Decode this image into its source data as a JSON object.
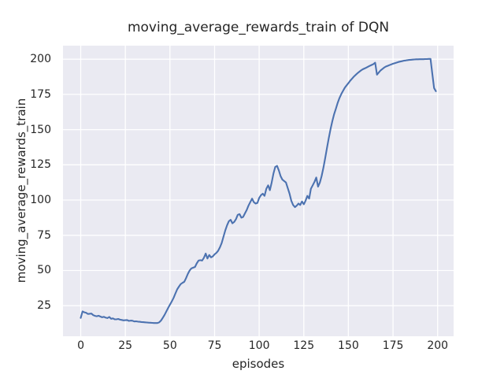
{
  "figure": {
    "background": "#ffffff",
    "plot_background": "#eaeaf2",
    "grid_color": "#ffffff",
    "text_color": "#262626",
    "line_color": "#4c72b0"
  },
  "chart_data": {
    "type": "line",
    "title": "moving_average_rewards_train of DQN",
    "xlabel": "episodes",
    "ylabel": "moving_average_rewards_train",
    "x_ticks": [
      0,
      25,
      50,
      75,
      100,
      125,
      150,
      175,
      200
    ],
    "y_ticks": [
      25,
      50,
      75,
      100,
      125,
      150,
      175,
      200
    ],
    "xlim": [
      -9.95,
      208.95
    ],
    "ylim": [
      3.3,
      209.6
    ],
    "grid": true,
    "legend": "none",
    "series": [
      {
        "name": "moving_average_rewards_train",
        "color": "#4c72b0",
        "points": [
          [
            0,
            16.3
          ],
          [
            1,
            20.9
          ],
          [
            2,
            20.3
          ],
          [
            3,
            20.0
          ],
          [
            4,
            19.1
          ],
          [
            5,
            19.3
          ],
          [
            6,
            19.4
          ],
          [
            7,
            18.3
          ],
          [
            8,
            17.8
          ],
          [
            9,
            17.5
          ],
          [
            10,
            17.9
          ],
          [
            11,
            17.3
          ],
          [
            12,
            16.8
          ],
          [
            13,
            17.1
          ],
          [
            14,
            16.5
          ],
          [
            15,
            16.2
          ],
          [
            16,
            17.0
          ],
          [
            17,
            15.7
          ],
          [
            18,
            16.0
          ],
          [
            19,
            15.4
          ],
          [
            20,
            15.3
          ],
          [
            21,
            15.6
          ],
          [
            22,
            15.1
          ],
          [
            23,
            14.9
          ],
          [
            24,
            14.6
          ],
          [
            25,
            14.7
          ],
          [
            26,
            14.8
          ],
          [
            27,
            14.2
          ],
          [
            28,
            14.4
          ],
          [
            29,
            14.3
          ],
          [
            30,
            13.8
          ],
          [
            31,
            13.9
          ],
          [
            32,
            13.7
          ],
          [
            33,
            13.6
          ],
          [
            34,
            13.4
          ],
          [
            35,
            13.3
          ],
          [
            36,
            13.2
          ],
          [
            37,
            13.1
          ],
          [
            38,
            13.0
          ],
          [
            39,
            12.9
          ],
          [
            40,
            12.8
          ],
          [
            41,
            12.7
          ],
          [
            42,
            12.7
          ],
          [
            43,
            12.7
          ],
          [
            44,
            13.2
          ],
          [
            45,
            14.5
          ],
          [
            46,
            16.5
          ],
          [
            47,
            18.5
          ],
          [
            48,
            21.0
          ],
          [
            49,
            23.5
          ],
          [
            50,
            25.7
          ],
          [
            51,
            28.0
          ],
          [
            52,
            30.5
          ],
          [
            53,
            33.5
          ],
          [
            54,
            36.5
          ],
          [
            55,
            38.5
          ],
          [
            56,
            40.3
          ],
          [
            57,
            41.2
          ],
          [
            58,
            42.0
          ],
          [
            59,
            44.5
          ],
          [
            60,
            47.5
          ],
          [
            61,
            50.0
          ],
          [
            62,
            51.5
          ],
          [
            63,
            52.0
          ],
          [
            64,
            52.5
          ],
          [
            65,
            55.0
          ],
          [
            66,
            57.0
          ],
          [
            67,
            57.3
          ],
          [
            68,
            57.0
          ],
          [
            69,
            59.0
          ],
          [
            70,
            62.0
          ],
          [
            71,
            58.5
          ],
          [
            72,
            61.0
          ],
          [
            73,
            59.3
          ],
          [
            74,
            60.0
          ],
          [
            75,
            61.5
          ],
          [
            76,
            62.5
          ],
          [
            77,
            64.0
          ],
          [
            78,
            66.5
          ],
          [
            79,
            69.5
          ],
          [
            80,
            74.0
          ],
          [
            81,
            78.5
          ],
          [
            82,
            82.0
          ],
          [
            83,
            85.0
          ],
          [
            84,
            86.0
          ],
          [
            85,
            83.5
          ],
          [
            86,
            84.5
          ],
          [
            87,
            86.5
          ],
          [
            88,
            89.5
          ],
          [
            89,
            90.0
          ],
          [
            90,
            87.5
          ],
          [
            91,
            88.0
          ],
          [
            92,
            90.5
          ],
          [
            93,
            93.0
          ],
          [
            94,
            96.0
          ],
          [
            95,
            98.5
          ],
          [
            96,
            101.0
          ],
          [
            97,
            98.5
          ],
          [
            98,
            97.5
          ],
          [
            99,
            98.0
          ],
          [
            100,
            101.5
          ],
          [
            101,
            103.5
          ],
          [
            102,
            104.5
          ],
          [
            103,
            103.0
          ],
          [
            104,
            108.0
          ],
          [
            105,
            110.5
          ],
          [
            106,
            107.0
          ],
          [
            107,
            112.5
          ],
          [
            108,
            119.0
          ],
          [
            109,
            123.5
          ],
          [
            110,
            124.3
          ],
          [
            111,
            121.0
          ],
          [
            112,
            117.0
          ],
          [
            113,
            114.5
          ],
          [
            114,
            113.5
          ],
          [
            115,
            112.5
          ],
          [
            116,
            108.5
          ],
          [
            117,
            104.5
          ],
          [
            118,
            99.5
          ],
          [
            119,
            96.5
          ],
          [
            120,
            95.0
          ],
          [
            121,
            96.0
          ],
          [
            122,
            97.5
          ],
          [
            123,
            96.5
          ],
          [
            124,
            99.0
          ],
          [
            125,
            97.0
          ],
          [
            126,
            99.5
          ],
          [
            127,
            103.0
          ],
          [
            128,
            101.0
          ],
          [
            129,
            108.0
          ],
          [
            130,
            110.5
          ],
          [
            131,
            113.0
          ],
          [
            132,
            116.0
          ],
          [
            133,
            109.5
          ],
          [
            134,
            112.5
          ],
          [
            135,
            117.0
          ],
          [
            136,
            123.0
          ],
          [
            137,
            130.0
          ],
          [
            138,
            137.0
          ],
          [
            139,
            144.0
          ],
          [
            140,
            150.5
          ],
          [
            141,
            156.0
          ],
          [
            142,
            161.0
          ],
          [
            143,
            165.0
          ],
          [
            144,
            169.0
          ],
          [
            145,
            172.5
          ],
          [
            146,
            175.3
          ],
          [
            147,
            177.5
          ],
          [
            148,
            179.8
          ],
          [
            149,
            181.5
          ],
          [
            150,
            183.0
          ],
          [
            151,
            184.7
          ],
          [
            152,
            186.2
          ],
          [
            153,
            187.6
          ],
          [
            154,
            188.8
          ],
          [
            155,
            190.0
          ],
          [
            156,
            191.0
          ],
          [
            157,
            192.0
          ],
          [
            158,
            192.8
          ],
          [
            159,
            193.4
          ],
          [
            160,
            194.0
          ],
          [
            161,
            194.7
          ],
          [
            162,
            195.3
          ],
          [
            163,
            195.9
          ],
          [
            164,
            196.5
          ],
          [
            165,
            197.5
          ],
          [
            166,
            189.0
          ],
          [
            167,
            190.5
          ],
          [
            168,
            192.0
          ],
          [
            169,
            193.0
          ],
          [
            170,
            194.0
          ],
          [
            171,
            194.8
          ],
          [
            172,
            195.3
          ],
          [
            173,
            195.8
          ],
          [
            174,
            196.3
          ],
          [
            175,
            196.8
          ],
          [
            176,
            197.2
          ],
          [
            177,
            197.6
          ],
          [
            178,
            198.0
          ],
          [
            179,
            198.3
          ],
          [
            180,
            198.6
          ],
          [
            181,
            198.9
          ],
          [
            182,
            199.1
          ],
          [
            183,
            199.3
          ],
          [
            184,
            199.5
          ],
          [
            185,
            199.6
          ],
          [
            186,
            199.7
          ],
          [
            187,
            199.8
          ],
          [
            188,
            199.9
          ],
          [
            189,
            199.9
          ],
          [
            190,
            200.0
          ],
          [
            191,
            200.0
          ],
          [
            192,
            200.0
          ],
          [
            193,
            200.1
          ],
          [
            194,
            200.1
          ],
          [
            195,
            200.2
          ],
          [
            196,
            200.2
          ],
          [
            197,
            190.0
          ],
          [
            198,
            179.5
          ],
          [
            199,
            177.3
          ]
        ]
      }
    ]
  }
}
